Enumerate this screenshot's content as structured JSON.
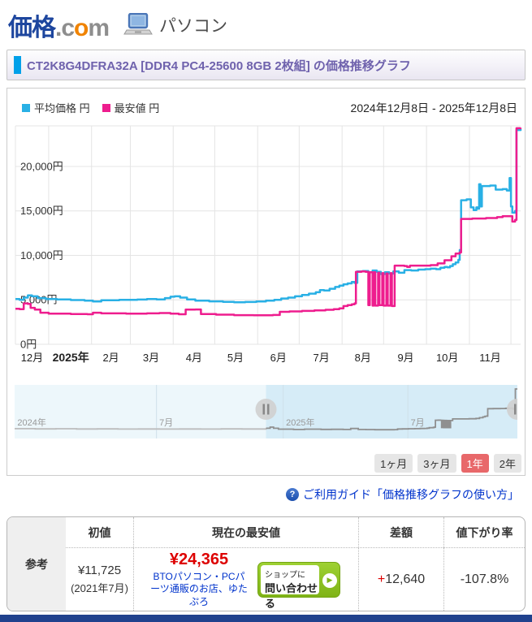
{
  "header": {
    "logo_kakaku": "価格",
    "logo_dot_c": ".c",
    "logo_o": "o",
    "logo_m": "m",
    "category": "パソコン"
  },
  "title_bar": {
    "title": "CT2K8G4DFRA32A [DDR4 PC4-25600 8GB 2枚組] の価格推移グラフ"
  },
  "chart": {
    "date_range": "2024年12月8日 - 2025年12月8日",
    "range_buttons": [
      {
        "label": "1ヶ月",
        "active": false
      },
      {
        "label": "3ヶ月",
        "active": false
      },
      {
        "label": "1年",
        "active": true
      },
      {
        "label": "2年",
        "active": false
      }
    ]
  },
  "chart_data": {
    "type": "line",
    "title": "価格推移グラフ",
    "x_unit": "days from 2024-12-08",
    "x_range": [
      0,
      365
    ],
    "ylim": [
      0,
      24566
    ],
    "grid": true,
    "legend_position": "top-left",
    "y_ticks": [
      {
        "value": 0,
        "label": "0円"
      },
      {
        "value": 5000,
        "label": "5,000円"
      },
      {
        "value": 10000,
        "label": "10,000円"
      },
      {
        "value": 15000,
        "label": "15,000円"
      },
      {
        "value": 20000,
        "label": "20,000円"
      }
    ],
    "x_ticks": [
      {
        "day": 12,
        "label": "12月",
        "bold": false
      },
      {
        "day": 40,
        "label": "2025年",
        "bold": true
      },
      {
        "day": 69,
        "label": "2月",
        "bold": false
      },
      {
        "day": 98,
        "label": "3月",
        "bold": false
      },
      {
        "day": 129,
        "label": "4月",
        "bold": false
      },
      {
        "day": 159,
        "label": "5月",
        "bold": false
      },
      {
        "day": 190,
        "label": "6月",
        "bold": false
      },
      {
        "day": 221,
        "label": "7月",
        "bold": false
      },
      {
        "day": 251,
        "label": "8月",
        "bold": false
      },
      {
        "day": 282,
        "label": "9月",
        "bold": false
      },
      {
        "day": 312,
        "label": "10月",
        "bold": false
      },
      {
        "day": 343,
        "label": "11月",
        "bold": false
      }
    ],
    "month_gridline_days": [
      0,
      24,
      55,
      83,
      114,
      144,
      175,
      205,
      236,
      266,
      297,
      328,
      358
    ],
    "series": [
      {
        "name": "平均価格 円",
        "color": "#29b0e5",
        "points": [
          [
            0,
            5100
          ],
          [
            3,
            5000
          ],
          [
            6,
            5250
          ],
          [
            9,
            5500
          ],
          [
            12,
            5400
          ],
          [
            16,
            5200
          ],
          [
            22,
            5100
          ],
          [
            30,
            5050
          ],
          [
            40,
            4980
          ],
          [
            50,
            4900
          ],
          [
            56,
            4820
          ],
          [
            62,
            4950
          ],
          [
            75,
            5000
          ],
          [
            88,
            5030
          ],
          [
            95,
            5100
          ],
          [
            102,
            5050
          ],
          [
            108,
            5200
          ],
          [
            112,
            5350
          ],
          [
            115,
            5400
          ],
          [
            119,
            5250
          ],
          [
            124,
            5050
          ],
          [
            130,
            4900
          ],
          [
            140,
            4830
          ],
          [
            150,
            4780
          ],
          [
            158,
            4720
          ],
          [
            166,
            4760
          ],
          [
            174,
            4820
          ],
          [
            181,
            4900
          ],
          [
            187,
            5000
          ],
          [
            192,
            5150
          ],
          [
            197,
            5250
          ],
          [
            202,
            5400
          ],
          [
            207,
            5550
          ],
          [
            212,
            5700
          ],
          [
            217,
            5850
          ],
          [
            220,
            6100
          ],
          [
            223,
            6050
          ],
          [
            227,
            6250
          ],
          [
            231,
            6450
          ],
          [
            234,
            6600
          ],
          [
            237,
            6750
          ],
          [
            240,
            6850
          ],
          [
            243,
            7000
          ],
          [
            245,
            6900
          ],
          [
            247,
            8200
          ],
          [
            251,
            8250
          ],
          [
            255,
            8100
          ],
          [
            258,
            8300
          ],
          [
            261,
            8150
          ],
          [
            264,
            7900
          ],
          [
            267,
            8100
          ],
          [
            270,
            7950
          ],
          [
            273,
            8200
          ],
          [
            277,
            8050
          ],
          [
            281,
            8350
          ],
          [
            286,
            8300
          ],
          [
            291,
            8400
          ],
          [
            296,
            8450
          ],
          [
            300,
            8500
          ],
          [
            304,
            8450
          ],
          [
            307,
            8600
          ],
          [
            310,
            8700
          ],
          [
            312,
            8650
          ],
          [
            314,
            8800
          ],
          [
            316,
            9000
          ],
          [
            318,
            9200
          ],
          [
            320,
            9500
          ],
          [
            321,
            10600
          ],
          [
            322,
            16200
          ],
          [
            326,
            16300
          ],
          [
            329,
            15400
          ],
          [
            331,
            15100
          ],
          [
            333,
            15400
          ],
          [
            334,
            15250
          ],
          [
            335,
            18000
          ],
          [
            336,
            15500
          ],
          [
            337,
            17800
          ],
          [
            343,
            17850
          ],
          [
            347,
            17400
          ],
          [
            352,
            17450
          ],
          [
            355,
            17300
          ],
          [
            357,
            18700
          ],
          [
            358,
            15500
          ],
          [
            359,
            14800
          ],
          [
            361,
            15000
          ],
          [
            362,
            24100
          ],
          [
            365,
            24200
          ]
        ]
      },
      {
        "name": "最安値 円",
        "color": "#ee1d8e",
        "points": [
          [
            0,
            4000
          ],
          [
            3,
            3950
          ],
          [
            6,
            4600
          ],
          [
            9,
            4550
          ],
          [
            11,
            4100
          ],
          [
            14,
            3900
          ],
          [
            18,
            3550
          ],
          [
            24,
            3450
          ],
          [
            40,
            3400
          ],
          [
            52,
            3380
          ],
          [
            56,
            3550
          ],
          [
            62,
            3480
          ],
          [
            80,
            3450
          ],
          [
            95,
            3480
          ],
          [
            104,
            3520
          ],
          [
            112,
            3450
          ],
          [
            118,
            3380
          ],
          [
            123,
            3900
          ],
          [
            130,
            3920
          ],
          [
            134,
            3400
          ],
          [
            145,
            3330
          ],
          [
            158,
            3280
          ],
          [
            172,
            3260
          ],
          [
            186,
            3300
          ],
          [
            191,
            3650
          ],
          [
            198,
            3700
          ],
          [
            207,
            3750
          ],
          [
            216,
            3820
          ],
          [
            224,
            3880
          ],
          [
            230,
            3950
          ],
          [
            234,
            4050
          ],
          [
            237,
            4300
          ],
          [
            240,
            4400
          ],
          [
            243,
            4500
          ],
          [
            245,
            4600
          ],
          [
            246,
            8150
          ],
          [
            250,
            8200
          ],
          [
            253,
            8150
          ],
          [
            255,
            4400
          ],
          [
            256,
            8100
          ],
          [
            258,
            4350
          ],
          [
            259,
            8100
          ],
          [
            260,
            4350
          ],
          [
            262,
            8050
          ],
          [
            263,
            4400
          ],
          [
            265,
            8000
          ],
          [
            266,
            4350
          ],
          [
            268,
            7950
          ],
          [
            269,
            4350
          ],
          [
            271,
            8000
          ],
          [
            272,
            4300
          ],
          [
            274,
            8850
          ],
          [
            281,
            8800
          ],
          [
            283,
            8700
          ],
          [
            285,
            8850
          ],
          [
            295,
            8850
          ],
          [
            300,
            8900
          ],
          [
            305,
            9100
          ],
          [
            310,
            9450
          ],
          [
            315,
            9900
          ],
          [
            318,
            10200
          ],
          [
            321,
            10350
          ],
          [
            322,
            14100
          ],
          [
            330,
            14150
          ],
          [
            340,
            14200
          ],
          [
            348,
            14300
          ],
          [
            352,
            14400
          ],
          [
            356,
            14400
          ],
          [
            359,
            13800
          ],
          [
            361,
            14000
          ],
          [
            362,
            24300
          ],
          [
            365,
            24365
          ]
        ]
      }
    ],
    "navigator": {
      "x_unit": "days from 2023-12-08",
      "x_range": [
        0,
        730
      ],
      "selected_from_day": 365,
      "labels": [
        {
          "day": 4,
          "label": "2024年"
        },
        {
          "day": 210,
          "label": "7月"
        },
        {
          "day": 394,
          "label": "2025年"
        },
        {
          "day": 575,
          "label": "7月"
        }
      ],
      "tick_days": [
        206,
        390,
        571
      ],
      "color_past": "#bcbcbc",
      "color_selected": "#8f8f8f",
      "bg_unselected": "#edf7fb",
      "bg_selected": "#d6ecf7",
      "points": [
        [
          0,
          3800
        ],
        [
          30,
          3700
        ],
        [
          60,
          3750
        ],
        [
          90,
          3650
        ],
        [
          120,
          3700
        ],
        [
          150,
          3600
        ],
        [
          180,
          3650
        ],
        [
          210,
          3600
        ],
        [
          240,
          3650
        ],
        [
          270,
          3600
        ],
        [
          300,
          3700
        ],
        [
          330,
          3650
        ],
        [
          365,
          4000
        ],
        [
          371,
          4600
        ],
        [
          376,
          4000
        ],
        [
          383,
          3550
        ],
        [
          405,
          3400
        ],
        [
          417,
          3380
        ],
        [
          421,
          3550
        ],
        [
          445,
          3450
        ],
        [
          460,
          3480
        ],
        [
          477,
          3380
        ],
        [
          488,
          3900
        ],
        [
          495,
          3900
        ],
        [
          499,
          3400
        ],
        [
          510,
          3330
        ],
        [
          523,
          3280
        ],
        [
          537,
          3260
        ],
        [
          551,
          3300
        ],
        [
          556,
          3650
        ],
        [
          563,
          3700
        ],
        [
          572,
          3750
        ],
        [
          581,
          3820
        ],
        [
          589,
          3880
        ],
        [
          595,
          3950
        ],
        [
          599,
          4050
        ],
        [
          602,
          4300
        ],
        [
          608,
          4500
        ],
        [
          610,
          4600
        ],
        [
          611,
          8150
        ],
        [
          615,
          8200
        ],
        [
          618,
          8150
        ],
        [
          620,
          4400
        ],
        [
          621,
          8100
        ],
        [
          623,
          4350
        ],
        [
          625,
          8050
        ],
        [
          627,
          4350
        ],
        [
          629,
          8000
        ],
        [
          631,
          4350
        ],
        [
          633,
          8000
        ],
        [
          636,
          8850
        ],
        [
          645,
          8850
        ],
        [
          660,
          8900
        ],
        [
          670,
          9100
        ],
        [
          675,
          9450
        ],
        [
          680,
          9900
        ],
        [
          683,
          10200
        ],
        [
          686,
          10350
        ],
        [
          687,
          14100
        ],
        [
          695,
          14150
        ],
        [
          705,
          14200
        ],
        [
          713,
          14300
        ],
        [
          717,
          14400
        ],
        [
          721,
          14400
        ],
        [
          724,
          13800
        ],
        [
          726,
          14000
        ],
        [
          727,
          24300
        ],
        [
          730,
          24365
        ]
      ]
    }
  },
  "help": {
    "icon": "?",
    "label": "ご利用ガイド「価格推移グラフの使い方」"
  },
  "table": {
    "row_header": "参考",
    "headers": [
      "初値",
      "現在の最安値",
      "差額",
      "値下がり率"
    ],
    "initial_price": "¥11,725",
    "initial_date": "(2021年7月)",
    "current_price": "¥24,365",
    "shop_name": "BTOパソコン・PCパーツ通販のお店、ゆたぷろ",
    "contact_button": {
      "line1": "ショップに",
      "line2": "問い合わせる",
      "arrow": "▶"
    },
    "diff_sign": "+",
    "diff_value": "12,640",
    "drop_rate": "-107.8%"
  },
  "colors": {
    "average_line": "#29b0e5",
    "lowest_line": "#ee1d8e",
    "title_accent": "#00a0e9",
    "link_blue": "#0033cc",
    "price_red": "#dd0000",
    "button_green": "#7fb317",
    "footer_navy": "#20418d"
  }
}
